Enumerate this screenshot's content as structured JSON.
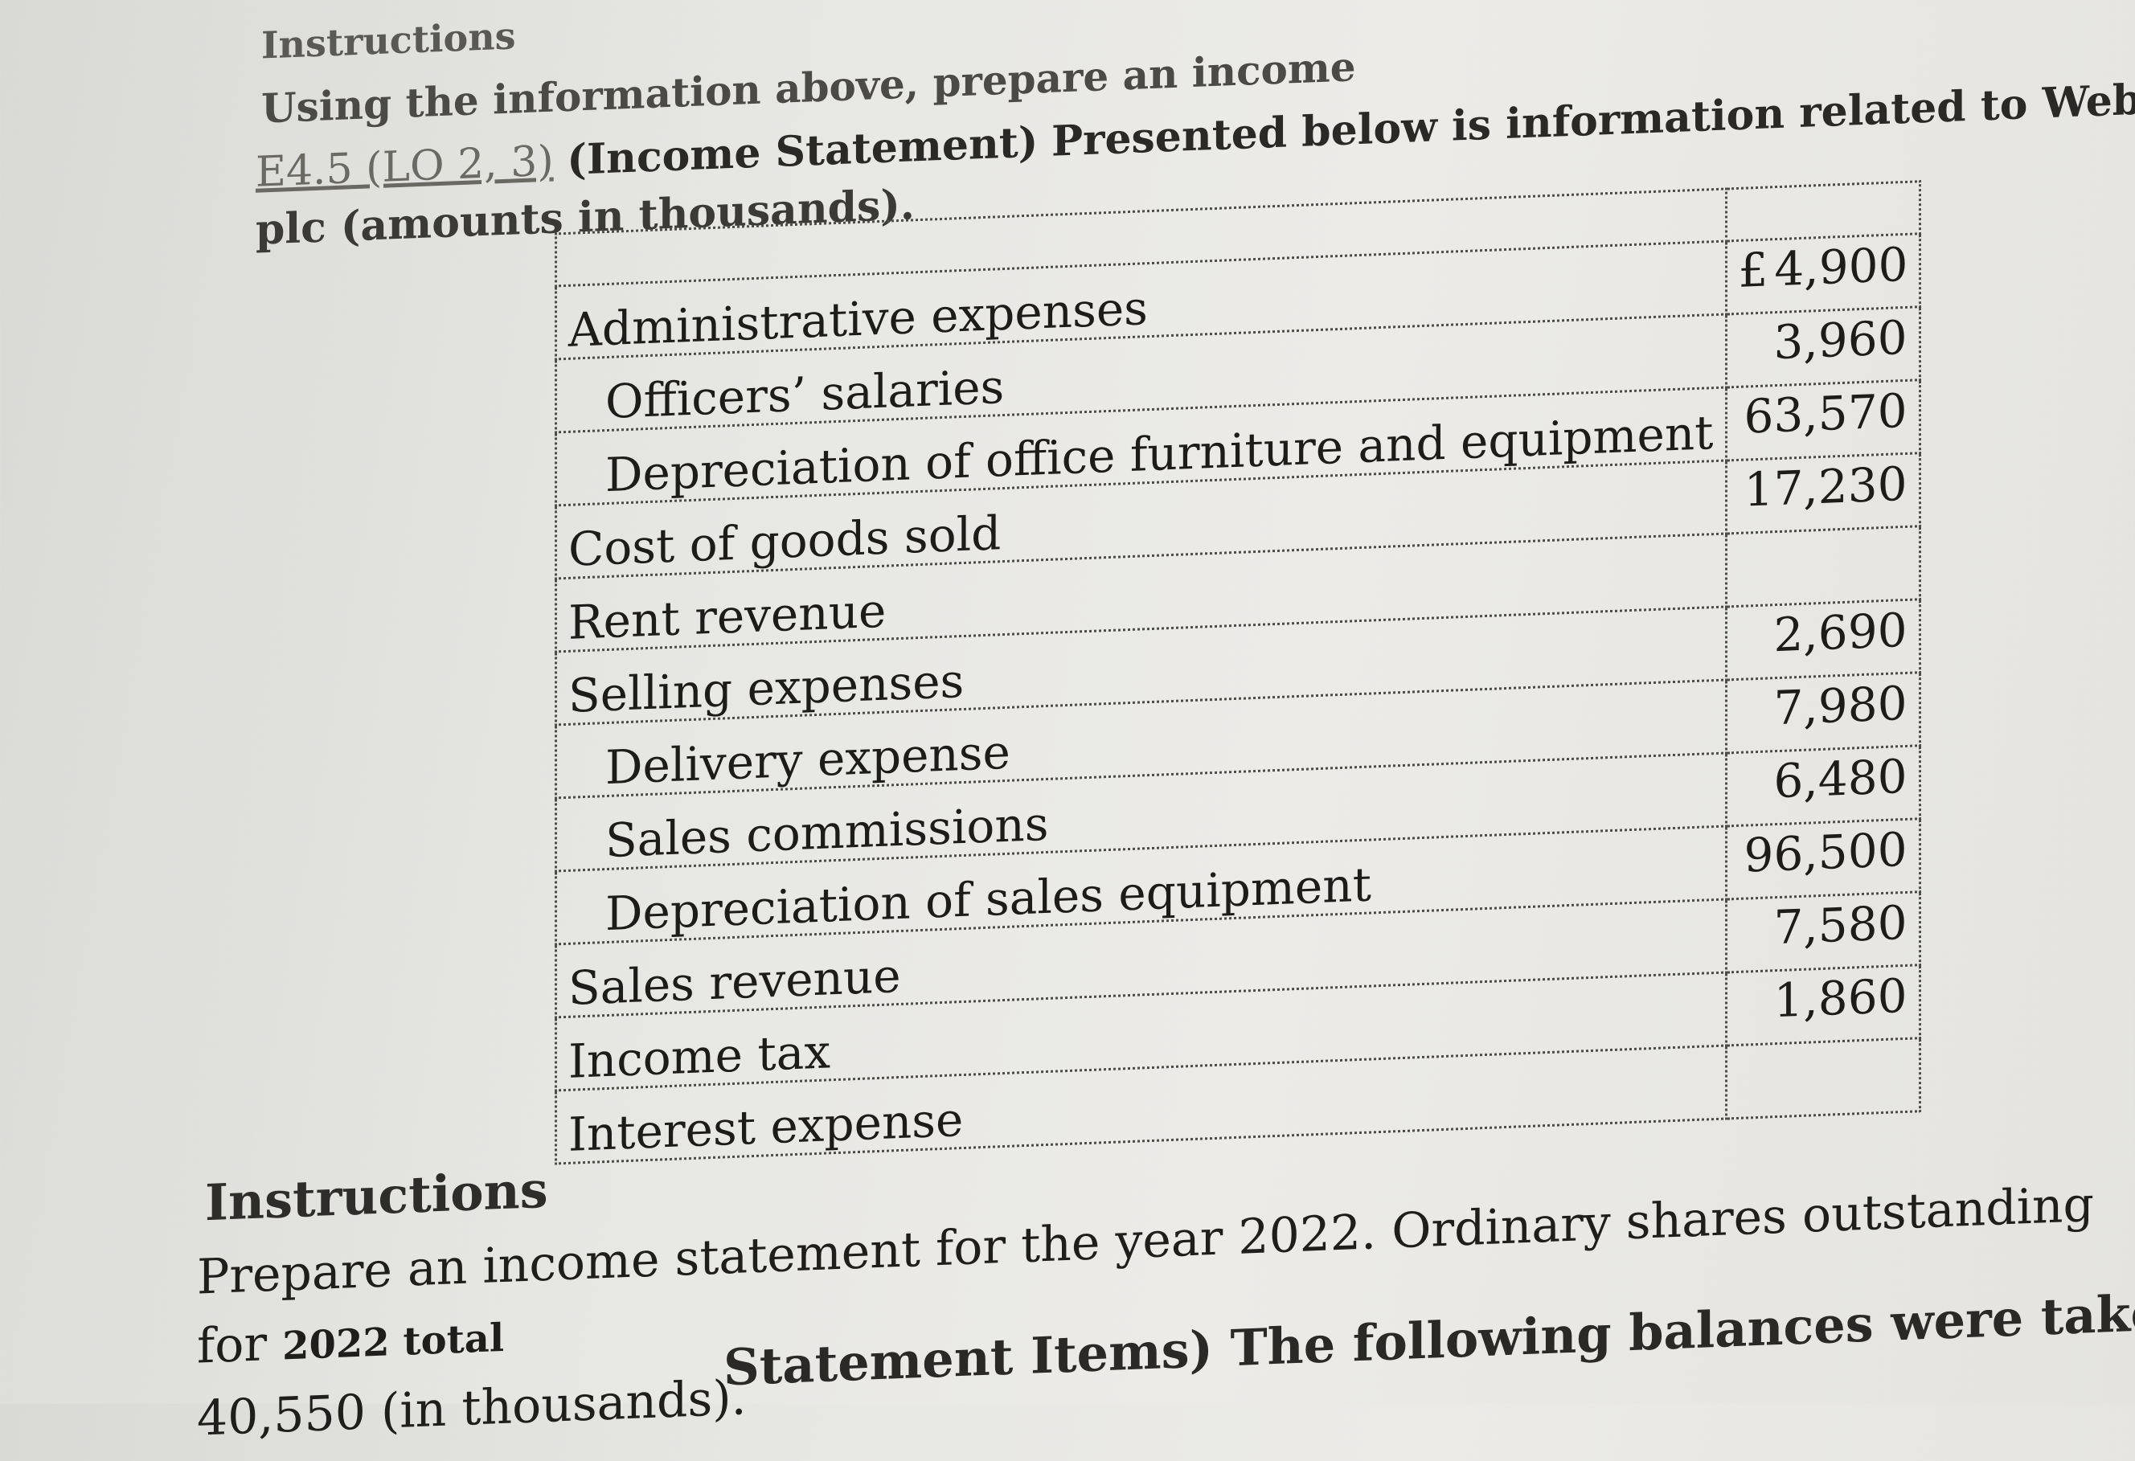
{
  "header": {
    "heading": "Instructions",
    "intro": "Using the information above, prepare an income"
  },
  "exercise": {
    "code": "E4.5 (LO 2, 3)",
    "title": "(Income Statement)",
    "text_line1": "Presented below is information related to Webster",
    "text_line2": "plc (amounts in thousands)."
  },
  "table": {
    "currency_symbol": "£",
    "rows": [
      {
        "label": "Administrative expenses",
        "amount": "4,900",
        "indent": false
      },
      {
        "label": "Officers’ salaries",
        "amount": "3,960",
        "indent": true
      },
      {
        "label": "Depreciation of office furniture and equipment",
        "amount": "63,570",
        "indent": true
      },
      {
        "label": "Cost of goods sold",
        "amount": "17,230",
        "indent": false
      },
      {
        "label": "Rent revenue",
        "amount": "",
        "indent": false
      },
      {
        "label": "Selling expenses",
        "amount": "2,690",
        "indent": false
      },
      {
        "label": "Delivery expense",
        "amount": "7,980",
        "indent": true
      },
      {
        "label": "Sales commissions",
        "amount": "6,480",
        "indent": true
      },
      {
        "label": "Depreciation of sales equipment",
        "amount": "96,500",
        "indent": true
      },
      {
        "label": "Sales revenue",
        "amount": "7,580",
        "indent": false
      },
      {
        "label": "Income tax",
        "amount": "1,860",
        "indent": false
      },
      {
        "label": "Interest expense",
        "amount": "",
        "indent": false
      }
    ]
  },
  "instructions": {
    "heading": "Instructions",
    "text_main": "Prepare an income statement for the year 2022. Ordinary shares outstanding for",
    "text_small": "2022 total",
    "text_end": "40,550 (in thousands)."
  },
  "next_exercise": {
    "text": "Statement Items) The following balances were taken from the"
  }
}
